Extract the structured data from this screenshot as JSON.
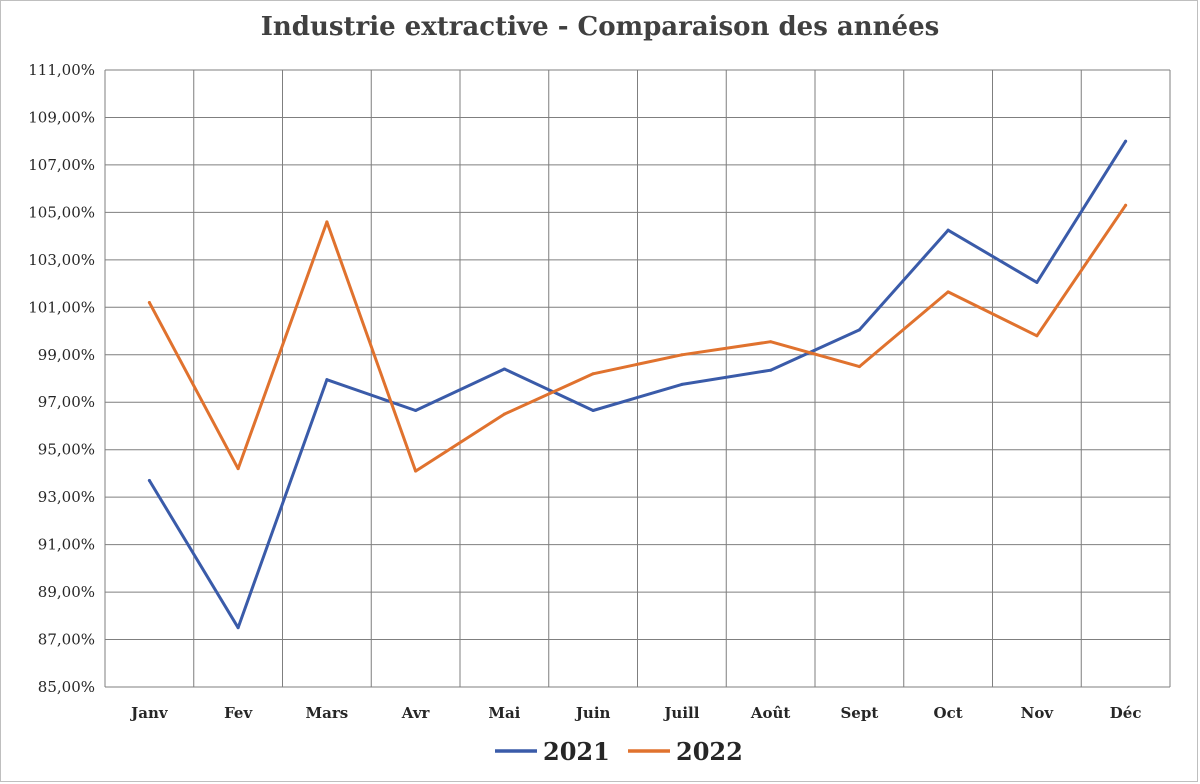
{
  "chart_data": {
    "type": "line",
    "title": "Industrie extractive - Comparaison des années",
    "xlabel": "",
    "ylabel": "",
    "categories": [
      "Janv",
      "Fev",
      "Mars",
      "Avr",
      "Mai",
      "Juin",
      "Juill",
      "Août",
      "Sept",
      "Oct",
      "Nov",
      "Déc"
    ],
    "ylim": [
      85,
      111
    ],
    "ytick_step": 2,
    "ytick_labels": [
      "85,00%",
      "87,00%",
      "89,00%",
      "91,00%",
      "93,00%",
      "95,00%",
      "97,00%",
      "99,00%",
      "101,00%",
      "103,00%",
      "105,00%",
      "107,00%",
      "109,00%",
      "111,00%"
    ],
    "grid": true,
    "legend_position": "bottom",
    "series": [
      {
        "name": "2021",
        "color": "#3a5ba9",
        "values": [
          93.7,
          87.5,
          97.95,
          96.65,
          98.4,
          96.65,
          97.75,
          98.35,
          100.05,
          104.25,
          102.05,
          108.0
        ]
      },
      {
        "name": "2022",
        "color": "#e0722e",
        "values": [
          101.2,
          94.2,
          104.6,
          94.1,
          96.5,
          98.2,
          99.0,
          99.55,
          98.5,
          101.65,
          99.8,
          105.3
        ]
      }
    ]
  }
}
